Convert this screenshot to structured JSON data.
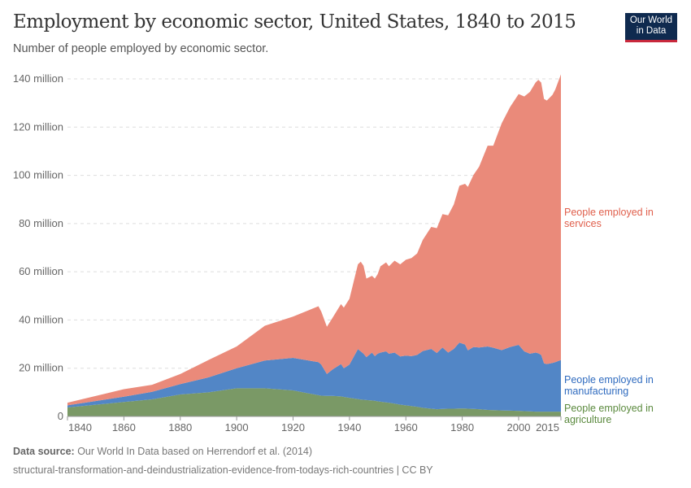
{
  "header": {
    "title": "Employment by economic sector, United States, 1840 to 2015",
    "subtitle": "Number of people employed by economic sector.",
    "logo": "Our World in Data"
  },
  "footer": {
    "source_label": "Data source:",
    "source_text": " Our World In Data based on Herrendorf et al. (2014)",
    "note": "structural-transformation-and-deindustrialization-evidence-from-todays-rich-countries | CC BY"
  },
  "chart_data": {
    "type": "area",
    "stacked": true,
    "grid": "horizontal dashed",
    "legend": "right, inline labels",
    "xlim": [
      1840,
      2015
    ],
    "ylim": [
      0,
      140
    ],
    "x_ticks": [
      "1840",
      "1860",
      "1880",
      "1900",
      "1920",
      "1940",
      "1960",
      "1980",
      "2000",
      "2015"
    ],
    "y_ticks": [
      "0",
      "20 million",
      "40 million",
      "60 million",
      "80 million",
      "100 million",
      "120 million",
      "140 million"
    ],
    "x": [
      1840,
      1860,
      1870,
      1880,
      1890,
      1900,
      1910,
      1920,
      1929,
      1930,
      1932,
      1934,
      1937,
      1938,
      1940,
      1943,
      1944,
      1945,
      1946,
      1948,
      1949,
      1950,
      1951,
      1953,
      1954,
      1956,
      1958,
      1960,
      1962,
      1964,
      1966,
      1969,
      1971,
      1973,
      1975,
      1977,
      1979,
      1981,
      1982,
      1984,
      1986,
      1989,
      1991,
      1994,
      1997,
      2000,
      2002,
      2004,
      2006,
      2007,
      2008,
      2009,
      2010,
      2012,
      2013,
      2015
    ],
    "series": [
      {
        "name": "People employed in agriculture",
        "color": "#7a9966",
        "label_color": "#5b8a3e",
        "values": [
          3.7,
          6.0,
          7.1,
          9.1,
          10.0,
          11.7,
          11.7,
          10.8,
          8.8,
          8.6,
          8.5,
          8.5,
          8.3,
          8.1,
          7.7,
          7.2,
          7.0,
          6.9,
          6.8,
          6.6,
          6.5,
          6.3,
          6.1,
          5.8,
          5.7,
          5.3,
          4.9,
          4.6,
          4.3,
          4.0,
          3.6,
          3.2,
          3.0,
          3.1,
          3.2,
          3.2,
          3.3,
          3.3,
          3.2,
          3.1,
          3.0,
          2.7,
          2.6,
          2.5,
          2.4,
          2.3,
          2.2,
          2.1,
          2.0,
          2.0,
          2.0,
          2.0,
          2.0,
          2.0,
          2.0,
          2.0
        ]
      },
      {
        "name": "People employed in manufacturing",
        "color": "#5286c6",
        "label_color": "#2f6bbf",
        "values": [
          0.9,
          2.2,
          3.1,
          4.3,
          6.2,
          8.3,
          11.5,
          13.5,
          13.7,
          12.9,
          9.1,
          11.0,
          13.4,
          11.9,
          13.8,
          20.7,
          20.0,
          19.1,
          17.8,
          19.9,
          18.5,
          19.7,
          20.4,
          21.2,
          20.3,
          21.2,
          20.0,
          20.6,
          20.7,
          21.5,
          23.5,
          24.8,
          23.3,
          25.5,
          23.3,
          24.8,
          27.3,
          26.5,
          24.2,
          25.7,
          25.6,
          26.3,
          25.9,
          25.0,
          26.4,
          27.4,
          24.8,
          23.9,
          24.5,
          24.2,
          23.5,
          20.0,
          19.7,
          20.2,
          20.5,
          21.4
        ]
      },
      {
        "name": "People employed in services",
        "color": "#ea8a7a",
        "label_color": "#e0604d",
        "values": [
          1.1,
          3.1,
          2.9,
          4.2,
          7.2,
          9.0,
          14.4,
          17.1,
          23.2,
          22.0,
          19.6,
          21.4,
          24.9,
          25.1,
          27.3,
          35.2,
          37.2,
          36.5,
          32.6,
          31.8,
          32.2,
          33.0,
          35.8,
          36.9,
          36.3,
          38.1,
          38.2,
          39.8,
          40.7,
          42.1,
          46.1,
          50.6,
          51.8,
          55.3,
          56.9,
          59.9,
          65.1,
          66.7,
          67.8,
          71.4,
          75.0,
          83.3,
          83.8,
          94.1,
          99.6,
          104.0,
          105.7,
          108.6,
          112.0,
          113.4,
          113.0,
          109.7,
          109.3,
          111.2,
          113.1,
          118.5
        ]
      }
    ],
    "labels": {
      "services": [
        "People employed in",
        "services"
      ],
      "manufacturing": [
        "People employed in",
        "manufacturing"
      ],
      "agriculture": [
        "People employed in",
        "agriculture"
      ]
    }
  }
}
